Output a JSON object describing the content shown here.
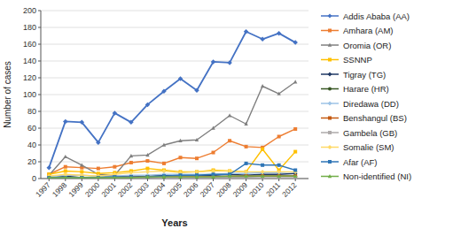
{
  "chart_data": {
    "type": "line",
    "xlabel": "Years",
    "ylabel": "Number of cases",
    "x": [
      1997,
      1998,
      1999,
      2000,
      2001,
      2002,
      2003,
      2004,
      2005,
      2006,
      2007,
      2008,
      2009,
      2010,
      2011,
      2012
    ],
    "xlim": [
      1996.5,
      2012.8
    ],
    "xticks": [
      1997,
      1998,
      1999,
      2000,
      2001,
      2002,
      2003,
      2004,
      2005,
      2006,
      2007,
      2008,
      2009,
      2010,
      2011,
      2012
    ],
    "ylim": [
      0,
      200
    ],
    "yticks": [
      0,
      20,
      40,
      60,
      80,
      100,
      120,
      140,
      160,
      180,
      200
    ],
    "grid": "y",
    "legend": "right",
    "series": [
      {
        "name": "Addis Ababa (AA)",
        "color": "#4472C4",
        "marker": "diamond",
        "values": [
          13,
          68,
          67,
          43,
          78,
          67,
          88,
          104,
          119,
          105,
          139,
          138,
          175,
          166,
          173,
          162
        ]
      },
      {
        "name": "Amhara (AM)",
        "color": "#ED7D31",
        "marker": "square",
        "values": [
          5,
          14,
          13,
          12,
          14,
          19,
          21,
          18,
          25,
          24,
          31,
          45,
          38,
          37,
          50,
          59
        ]
      },
      {
        "name": "Oromia (OR)",
        "color": "#7F7F7F",
        "marker": "triangle",
        "values": [
          4,
          26,
          16,
          5,
          4,
          27,
          28,
          40,
          45,
          46,
          60,
          75,
          65,
          110,
          101,
          115
        ]
      },
      {
        "name": "SSNNP",
        "color": "#FFC000",
        "marker": "square",
        "values": [
          5,
          9,
          8,
          6,
          7,
          9,
          12,
          10,
          8,
          8,
          10,
          9,
          8,
          35,
          10,
          32
        ]
      },
      {
        "name": "Tigray (TG)",
        "color": "#1F3864",
        "marker": "diamond",
        "values": [
          2,
          3,
          1,
          2,
          3,
          2,
          3,
          4,
          4,
          4,
          4,
          5,
          4,
          5,
          5,
          6
        ]
      },
      {
        "name": "Harare (HR)",
        "color": "#375623",
        "marker": "circle",
        "values": [
          1,
          1,
          1,
          1,
          1,
          1,
          1,
          2,
          2,
          2,
          2,
          2,
          2,
          3,
          3,
          3
        ]
      },
      {
        "name": "Diredawa (DD)",
        "color": "#9DC3E6",
        "marker": "diamond",
        "values": [
          2,
          4,
          4,
          3,
          3,
          4,
          4,
          5,
          5,
          5,
          5,
          6,
          6,
          7,
          7,
          8
        ]
      },
      {
        "name": "Benshangul (BS)",
        "color": "#C55A11",
        "marker": "square",
        "values": [
          1,
          1,
          1,
          1,
          1,
          2,
          2,
          2,
          2,
          2,
          2,
          3,
          3,
          3,
          3,
          3
        ]
      },
      {
        "name": "Gambela (GB)",
        "color": "#AEAAAA",
        "marker": "square",
        "values": [
          1,
          1,
          1,
          1,
          1,
          1,
          1,
          1,
          1,
          1,
          1,
          1,
          1,
          1,
          1,
          1
        ]
      },
      {
        "name": "Somalie (SM)",
        "color": "#FFD966",
        "marker": "diamond",
        "values": [
          3,
          5,
          4,
          3,
          5,
          7,
          8,
          9,
          7,
          8,
          9,
          9,
          8,
          8,
          8,
          8
        ]
      },
      {
        "name": "Afar (AF)",
        "color": "#2E75B6",
        "marker": "square",
        "values": [
          1,
          1,
          1,
          1,
          2,
          2,
          2,
          3,
          4,
          4,
          5,
          5,
          18,
          16,
          16,
          10
        ]
      },
      {
        "name": "Non-identified (NI)",
        "color": "#70AD47",
        "marker": "triangle",
        "values": [
          1,
          1,
          1,
          1,
          1,
          1,
          2,
          2,
          2,
          2,
          2,
          3,
          3,
          3,
          3,
          3
        ]
      }
    ]
  }
}
